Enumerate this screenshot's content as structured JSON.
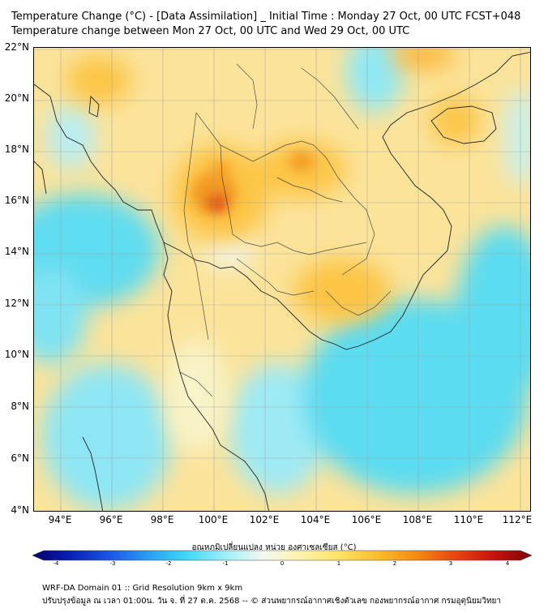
{
  "title_line1": "Temperature Change (°C) - [Data Assimilation] _ Initial Time : Monday 27 Oct, 00 UTC FCST+048",
  "title_line2": "Temperature change between Mon 27 Oct, 00 UTC and Wed 29 Oct, 00 UTC",
  "lat_ticks": [
    "22°N",
    "20°N",
    "18°N",
    "16°N",
    "14°N",
    "12°N",
    "10°N",
    "8°N",
    "6°N",
    "4°N"
  ],
  "lon_ticks": [
    "94°E",
    "96°E",
    "98°E",
    "100°E",
    "102°E",
    "104°E",
    "106°E",
    "108°E",
    "110°E",
    "112°E"
  ],
  "colorbar": {
    "label": "อุณหภูมิเปลี่ยนแปลง หน่วย องศาเซลเซียส (°C)",
    "ticks": [
      "-4",
      "-3",
      "-2",
      "-1",
      "0",
      "1",
      "2",
      "3",
      "4"
    ],
    "range": [
      -4,
      4
    ],
    "colors": [
      "#08006b",
      "#0a1fb8",
      "#1a55e6",
      "#2a9df2",
      "#3fd7f5",
      "#9bf0f6",
      "#f4f8f0",
      "#fcf3a8",
      "#fde264",
      "#fbbc2a",
      "#f58a10",
      "#e84610",
      "#c8120e",
      "#7a0606"
    ]
  },
  "footer_line1": "WRF-DA Domain 01 :: Grid Resolution 9km x 9km",
  "footer_line2": "ปรับปรุงข้อมูล ณ เวลา 01:00น. วัน จ. ที่ 27 ต.ค. 2568 -- © ส่วนพยากรณ์อากาศเชิงตัวเลข กองพยากรณ์อากาศ กรมอุตุนิยมวิทยา"
}
